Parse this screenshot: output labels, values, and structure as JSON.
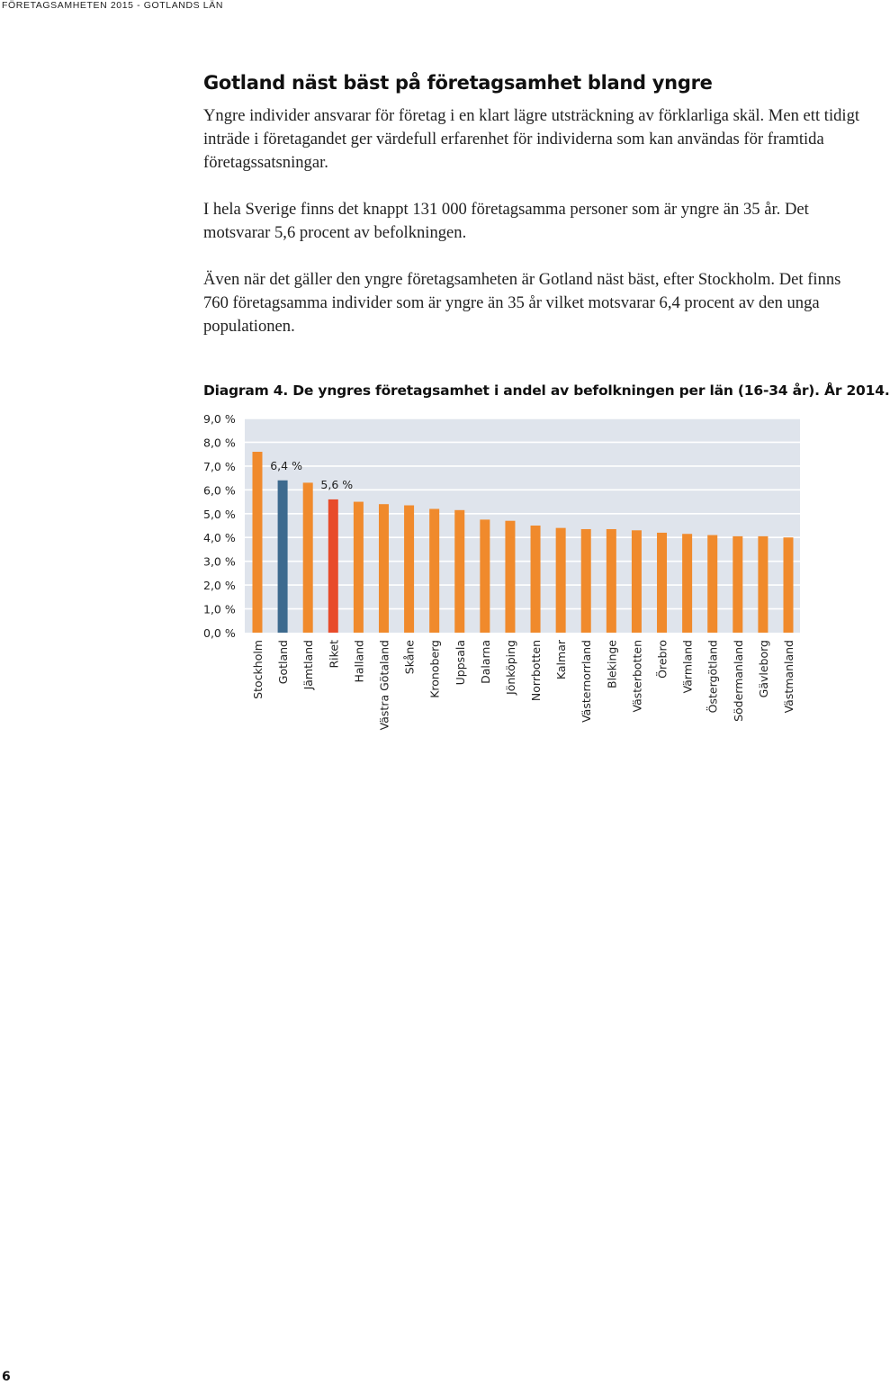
{
  "header": {
    "running_title": "FÖRETAGSAMHETEN 2015 - GOTLANDS LÄN"
  },
  "article": {
    "headline": "Gotland näst bäst på företagsamhet bland yngre",
    "paragraphs": [
      "Yngre individer ansvarar för företag i en klart lägre utsträckning av förklarliga skäl. Men ett tidigt inträde i företagandet ger värdefull erfarenhet för individerna som kan användas för framtida företagssatsningar.",
      "I hela Sverige finns det knappt 131 000 företagsamma personer som är yngre än 35 år. Det motsvarar 5,6 procent av befolkningen.",
      "Även när det gäller den yngre företagsamheten är Gotland näst bäst, efter Stockholm. Det finns 760 företagsamma individer som är yngre än 35 år vilket motsvarar 6,4 procent av den unga populationen."
    ]
  },
  "chart_data": {
    "type": "bar",
    "title": "Diagram 4. De yngres företagsamhet i andel av befolkningen per län (16-34 år). År 2014.",
    "categories": [
      "Stockholm",
      "Gotland",
      "Jämtland",
      "Riket",
      "Halland",
      "Västra Götaland",
      "Skåne",
      "Kronoberg",
      "Uppsala",
      "Dalarna",
      "Jönköping",
      "Norrbotten",
      "Kalmar",
      "Västernorrland",
      "Blekinge",
      "Västerbotten",
      "Örebro",
      "Värmland",
      "Östergötland",
      "Södermanland",
      "Gävleborg",
      "Västmanland"
    ],
    "values": [
      7.6,
      6.4,
      6.3,
      5.6,
      5.5,
      5.4,
      5.35,
      5.2,
      5.15,
      4.75,
      4.7,
      4.5,
      4.4,
      4.35,
      4.35,
      4.3,
      4.2,
      4.15,
      4.1,
      4.05,
      4.05,
      4.0
    ],
    "bar_colors": [
      "#f08a2c",
      "#3d6a8e",
      "#f08a2c",
      "#e84b2a",
      "#f08a2c",
      "#f08a2c",
      "#f08a2c",
      "#f08a2c",
      "#f08a2c",
      "#f08a2c",
      "#f08a2c",
      "#f08a2c",
      "#f08a2c",
      "#f08a2c",
      "#f08a2c",
      "#f08a2c",
      "#f08a2c",
      "#f08a2c",
      "#f08a2c",
      "#f08a2c",
      "#f08a2c",
      "#f08a2c"
    ],
    "data_labels": [
      {
        "category": "Gotland",
        "text": "6,4 %"
      },
      {
        "category": "Riket",
        "text": "5,6 %"
      }
    ],
    "y_ticks": [
      "0,0 %",
      "1,0 %",
      "2,0 %",
      "3,0 %",
      "4,0 %",
      "5,0 %",
      "6,0 %",
      "7,0 %",
      "8,0 %",
      "9,0 %"
    ],
    "ylim": [
      0,
      9
    ],
    "xlabel": "",
    "ylabel": "",
    "grid": true,
    "legend": "none",
    "colors": {
      "background_band": "#dfe4ec",
      "gridline": "#ffffff",
      "default_bar": "#f08a2c",
      "highlight_county": "#3d6a8e",
      "national": "#e84b2a"
    }
  },
  "footer": {
    "page_number": "6"
  }
}
